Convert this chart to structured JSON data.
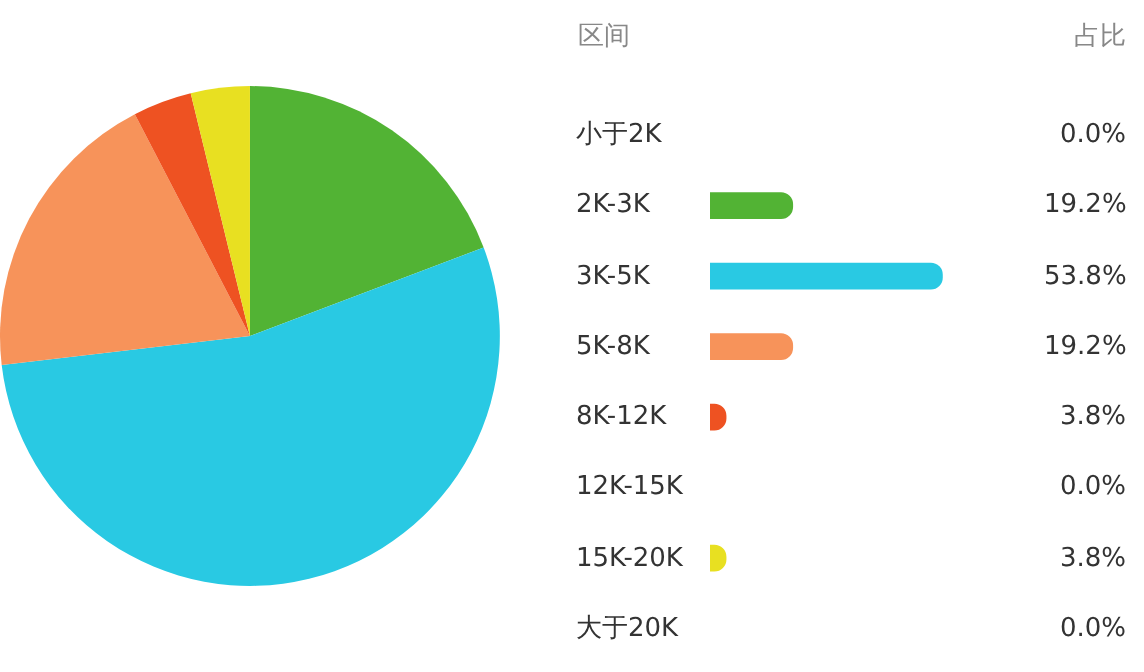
{
  "chart_data": [
    {
      "type": "pie",
      "categories": [
        null,
        null,
        null,
        null,
        null,
        null,
        null,
        null
      ],
      "values": [
        0.0,
        19.2,
        53.8,
        19.2,
        3.8,
        0.0,
        3.8,
        0.0
      ],
      "colors": [
        null,
        "#52b334",
        "#29c9e3",
        "#f7935a",
        "#ee5222",
        null,
        "#e8e021",
        null
      ],
      "legend": false
    },
    {
      "type": "bar",
      "orientation": "horizontal",
      "categories": [
        "小于2K",
        "2K-3K",
        "3K-5K",
        "5K-8K",
        "8K-12K",
        "12K-15K",
        "15K-20K",
        "大于20K"
      ],
      "values": [
        0.0,
        19.2,
        53.8,
        19.2,
        3.8,
        0.0,
        3.8,
        0.0
      ],
      "colors": [
        null,
        "#52b334",
        "#29c9e3",
        "#f7935a",
        "#ee5222",
        null,
        "#e8e021",
        null
      ],
      "value_labels": [
        "0.0%",
        "19.2%",
        "53.8%",
        "19.2%",
        "3.8%",
        "0.0%",
        "3.8%",
        "0.0%"
      ],
      "annotations": [
        "区间",
        "占比"
      ]
    }
  ]
}
